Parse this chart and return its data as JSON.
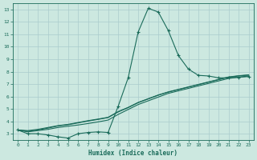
{
  "xlabel": "Humidex (Indice chaleur)",
  "bg_color": "#cce8e0",
  "grid_color": "#aacccc",
  "line_color": "#1a6b5a",
  "xlim": [
    -0.5,
    23.5
  ],
  "ylim": [
    2.5,
    13.5
  ],
  "xticks": [
    0,
    1,
    2,
    3,
    4,
    5,
    6,
    7,
    8,
    9,
    10,
    11,
    12,
    13,
    14,
    15,
    16,
    17,
    18,
    19,
    20,
    21,
    22,
    23
  ],
  "yticks": [
    3,
    4,
    5,
    6,
    7,
    8,
    9,
    10,
    11,
    12,
    13
  ],
  "curve1_x": [
    0,
    1,
    2,
    3,
    4,
    5,
    6,
    7,
    8,
    9,
    10,
    11,
    12,
    13,
    14,
    15,
    16,
    17,
    18,
    19,
    20,
    21,
    22,
    23
  ],
  "curve1_y": [
    3.3,
    3.0,
    3.0,
    2.9,
    2.75,
    2.65,
    3.0,
    3.1,
    3.15,
    3.1,
    5.2,
    7.5,
    11.2,
    13.1,
    12.8,
    11.3,
    9.3,
    8.2,
    7.7,
    7.65,
    7.5,
    7.5,
    7.55,
    7.6
  ],
  "curve2_x": [
    0,
    1,
    2,
    3,
    4,
    5,
    6,
    7,
    8,
    9,
    10,
    11,
    12,
    13,
    14,
    15,
    16,
    17,
    18,
    19,
    20,
    21,
    22,
    23
  ],
  "curve2_y": [
    3.3,
    3.15,
    3.25,
    3.35,
    3.5,
    3.6,
    3.7,
    3.82,
    3.95,
    4.1,
    4.55,
    4.95,
    5.35,
    5.65,
    5.95,
    6.25,
    6.45,
    6.65,
    6.85,
    7.05,
    7.25,
    7.45,
    7.55,
    7.65
  ],
  "curve3_x": [
    0,
    1,
    2,
    3,
    4,
    5,
    6,
    7,
    8,
    9,
    10,
    11,
    12,
    13,
    14,
    15,
    16,
    17,
    18,
    19,
    20,
    21,
    22,
    23
  ],
  "curve3_y": [
    3.3,
    3.2,
    3.3,
    3.45,
    3.62,
    3.72,
    3.87,
    4.02,
    4.15,
    4.3,
    4.75,
    5.1,
    5.5,
    5.8,
    6.1,
    6.35,
    6.55,
    6.75,
    6.95,
    7.15,
    7.35,
    7.55,
    7.65,
    7.72
  ],
  "curve4_x": [
    0,
    1,
    2,
    3,
    4,
    5,
    6,
    7,
    8,
    9,
    10,
    11,
    12,
    13,
    14,
    15,
    16,
    17,
    18,
    19,
    20,
    21,
    22,
    23
  ],
  "curve4_y": [
    3.3,
    3.25,
    3.35,
    3.5,
    3.65,
    3.75,
    3.9,
    4.05,
    4.18,
    4.32,
    4.78,
    5.12,
    5.52,
    5.82,
    6.12,
    6.37,
    6.57,
    6.77,
    6.97,
    7.17,
    7.37,
    7.57,
    7.67,
    7.74
  ]
}
